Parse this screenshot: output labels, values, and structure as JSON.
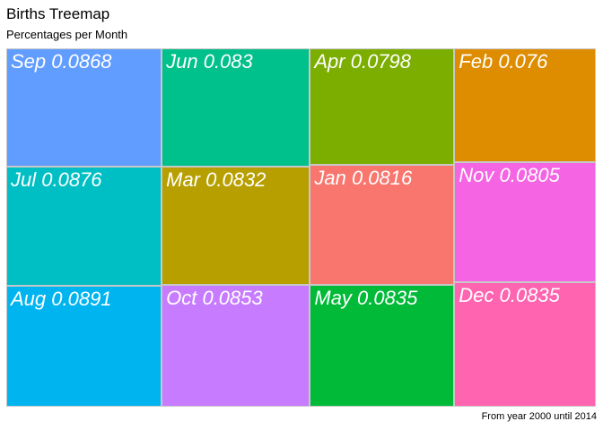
{
  "chart_data": {
    "type": "treemap",
    "title": "Births Treemap",
    "subtitle": "Percentages per Month",
    "caption": "From year 2000 until 2014",
    "columns": [
      [
        {
          "label": "Sep",
          "value": 0.0868,
          "color": "#619CFF"
        },
        {
          "label": "Jul",
          "value": 0.0876,
          "color": "#00BFC4"
        },
        {
          "label": "Aug",
          "value": 0.0891,
          "color": "#00B4F0"
        }
      ],
      [
        {
          "label": "Jun",
          "value": 0.083,
          "color": "#00C08B"
        },
        {
          "label": "Mar",
          "value": 0.0832,
          "color": "#B79F00"
        },
        {
          "label": "Oct",
          "value": 0.0853,
          "color": "#C77CFF"
        }
      ],
      [
        {
          "label": "Apr",
          "value": 0.0798,
          "color": "#7CAE00"
        },
        {
          "label": "Jan",
          "value": 0.0816,
          "color": "#F8766D"
        },
        {
          "label": "May",
          "value": 0.0835,
          "color": "#00BA38"
        }
      ],
      [
        {
          "label": "Feb",
          "value": 0.076,
          "color": "#DE8C00"
        },
        {
          "label": "Nov",
          "value": 0.0805,
          "color": "#F564E3"
        },
        {
          "label": "Dec",
          "value": 0.0835,
          "color": "#FF64B0"
        }
      ]
    ]
  }
}
